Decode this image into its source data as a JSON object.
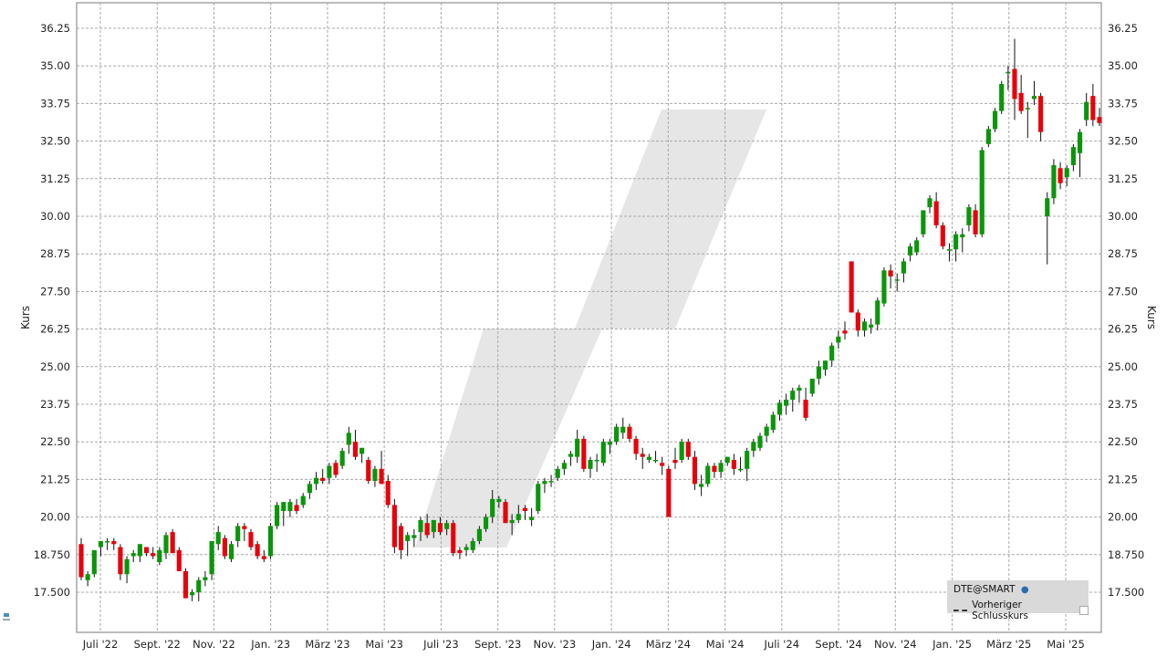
{
  "chart_data": {
    "type": "candlestick",
    "ylabel_left": "Kurs",
    "ylabel_right": "Kurs",
    "ylim": [
      16.5,
      37.0
    ],
    "y_ticks": [
      "17.500",
      "18.750",
      "20.00",
      "21.25",
      "22.50",
      "23.75",
      "25.00",
      "26.25",
      "27.50",
      "28.75",
      "30.00",
      "31.25",
      "32.50",
      "33.75",
      "35.00",
      "36.25"
    ],
    "x_ticks": [
      "Juli '22",
      "Sept. '22",
      "Nov. '22",
      "Jan. '23",
      "März '23",
      "Mai '23",
      "Juli '23",
      "Sept. '23",
      "Nov. '23",
      "Jan. '24",
      "März '24",
      "Mai '24",
      "Juli '24",
      "Sept. '24",
      "Nov. '24",
      "Jan. '25",
      "März '25",
      "Mai '25"
    ],
    "grid": true,
    "up_color": "#0a960a",
    "down_color": "#e8000b",
    "candles": [
      {
        "o": 19.1,
        "h": 19.3,
        "l": 17.9,
        "c": 18.0
      },
      {
        "o": 17.9,
        "h": 18.2,
        "l": 17.7,
        "c": 18.1
      },
      {
        "o": 18.1,
        "h": 18.9,
        "l": 18.0,
        "c": 18.9
      },
      {
        "o": 19.0,
        "h": 19.2,
        "l": 18.7,
        "c": 19.2
      },
      {
        "o": 19.2,
        "h": 19.3,
        "l": 18.9,
        "c": 19.2
      },
      {
        "o": 19.2,
        "h": 19.3,
        "l": 18.9,
        "c": 19.1
      },
      {
        "o": 19.0,
        "h": 19.1,
        "l": 17.9,
        "c": 18.1
      },
      {
        "o": 18.1,
        "h": 18.7,
        "l": 17.8,
        "c": 18.6
      },
      {
        "o": 18.7,
        "h": 18.9,
        "l": 18.5,
        "c": 18.8
      },
      {
        "o": 18.7,
        "h": 19.1,
        "l": 18.5,
        "c": 19.1
      },
      {
        "o": 19.0,
        "h": 19.0,
        "l": 18.7,
        "c": 18.8
      },
      {
        "o": 18.8,
        "h": 19.0,
        "l": 18.6,
        "c": 18.7
      },
      {
        "o": 18.5,
        "h": 19.0,
        "l": 18.4,
        "c": 18.9
      },
      {
        "o": 18.8,
        "h": 19.5,
        "l": 18.6,
        "c": 19.4
      },
      {
        "o": 19.5,
        "h": 19.6,
        "l": 18.8,
        "c": 18.8
      },
      {
        "o": 18.9,
        "h": 19.0,
        "l": 18.2,
        "c": 18.2
      },
      {
        "o": 18.2,
        "h": 18.3,
        "l": 17.3,
        "c": 17.3
      },
      {
        "o": 17.4,
        "h": 17.6,
        "l": 17.2,
        "c": 17.5
      },
      {
        "o": 17.5,
        "h": 18.0,
        "l": 17.2,
        "c": 17.9
      },
      {
        "o": 17.9,
        "h": 18.2,
        "l": 17.7,
        "c": 18.0
      },
      {
        "o": 18.1,
        "h": 19.2,
        "l": 17.9,
        "c": 19.2
      },
      {
        "o": 19.1,
        "h": 19.7,
        "l": 18.9,
        "c": 19.5
      },
      {
        "o": 19.3,
        "h": 19.4,
        "l": 18.6,
        "c": 18.7
      },
      {
        "o": 18.6,
        "h": 19.2,
        "l": 18.5,
        "c": 19.1
      },
      {
        "o": 19.2,
        "h": 19.8,
        "l": 19.0,
        "c": 19.7
      },
      {
        "o": 19.7,
        "h": 19.8,
        "l": 19.2,
        "c": 19.6
      },
      {
        "o": 19.5,
        "h": 19.6,
        "l": 18.9,
        "c": 19.0
      },
      {
        "o": 19.1,
        "h": 19.2,
        "l": 18.6,
        "c": 18.7
      },
      {
        "o": 18.7,
        "h": 18.9,
        "l": 18.5,
        "c": 18.6
      },
      {
        "o": 18.7,
        "h": 19.8,
        "l": 18.6,
        "c": 19.7
      },
      {
        "o": 19.7,
        "h": 20.5,
        "l": 19.6,
        "c": 20.4
      },
      {
        "o": 20.2,
        "h": 20.5,
        "l": 19.7,
        "c": 20.5
      },
      {
        "o": 20.2,
        "h": 20.6,
        "l": 20.0,
        "c": 20.5
      },
      {
        "o": 20.4,
        "h": 20.6,
        "l": 20.1,
        "c": 20.2
      },
      {
        "o": 20.4,
        "h": 20.8,
        "l": 20.3,
        "c": 20.7
      },
      {
        "o": 20.8,
        "h": 21.2,
        "l": 20.6,
        "c": 21.1
      },
      {
        "o": 21.1,
        "h": 21.5,
        "l": 20.9,
        "c": 21.3
      },
      {
        "o": 21.3,
        "h": 21.6,
        "l": 21.1,
        "c": 21.2
      },
      {
        "o": 21.3,
        "h": 21.8,
        "l": 21.1,
        "c": 21.7
      },
      {
        "o": 21.8,
        "h": 21.9,
        "l": 21.3,
        "c": 21.4
      },
      {
        "o": 21.7,
        "h": 22.3,
        "l": 21.6,
        "c": 22.2
      },
      {
        "o": 22.4,
        "h": 23.0,
        "l": 22.1,
        "c": 22.8
      },
      {
        "o": 22.5,
        "h": 22.9,
        "l": 21.9,
        "c": 22.0
      },
      {
        "o": 22.1,
        "h": 22.3,
        "l": 21.8,
        "c": 22.3
      },
      {
        "o": 21.9,
        "h": 22.0,
        "l": 21.1,
        "c": 21.2
      },
      {
        "o": 21.2,
        "h": 21.7,
        "l": 21.0,
        "c": 21.6
      },
      {
        "o": 21.6,
        "h": 22.2,
        "l": 21.1,
        "c": 21.1
      },
      {
        "o": 21.2,
        "h": 21.4,
        "l": 20.3,
        "c": 20.4
      },
      {
        "o": 20.4,
        "h": 20.6,
        "l": 18.8,
        "c": 19.0
      },
      {
        "o": 19.7,
        "h": 19.8,
        "l": 18.6,
        "c": 18.9
      },
      {
        "o": 19.2,
        "h": 19.5,
        "l": 18.7,
        "c": 19.4
      },
      {
        "o": 19.3,
        "h": 19.6,
        "l": 19.0,
        "c": 19.4
      },
      {
        "o": 19.5,
        "h": 20.0,
        "l": 19.2,
        "c": 19.9
      },
      {
        "o": 19.8,
        "h": 20.1,
        "l": 19.3,
        "c": 19.4
      },
      {
        "o": 19.5,
        "h": 19.9,
        "l": 19.3,
        "c": 19.9
      },
      {
        "o": 19.8,
        "h": 20.0,
        "l": 19.4,
        "c": 19.5
      },
      {
        "o": 19.6,
        "h": 19.9,
        "l": 19.4,
        "c": 19.8
      },
      {
        "o": 19.8,
        "h": 19.9,
        "l": 18.7,
        "c": 18.8
      },
      {
        "o": 18.9,
        "h": 19.0,
        "l": 18.6,
        "c": 18.8
      },
      {
        "o": 18.9,
        "h": 19.1,
        "l": 18.7,
        "c": 19.0
      },
      {
        "o": 18.9,
        "h": 19.3,
        "l": 18.8,
        "c": 19.2
      },
      {
        "o": 19.2,
        "h": 19.7,
        "l": 19.1,
        "c": 19.6
      },
      {
        "o": 19.6,
        "h": 20.1,
        "l": 19.5,
        "c": 20.0
      },
      {
        "o": 20.0,
        "h": 20.9,
        "l": 19.8,
        "c": 20.6
      },
      {
        "o": 20.5,
        "h": 20.7,
        "l": 20.3,
        "c": 20.6
      },
      {
        "o": 20.5,
        "h": 20.6,
        "l": 19.8,
        "c": 19.8
      },
      {
        "o": 19.8,
        "h": 20.1,
        "l": 19.4,
        "c": 19.9
      },
      {
        "o": 19.9,
        "h": 20.4,
        "l": 19.8,
        "c": 20.1
      },
      {
        "o": 20.3,
        "h": 20.4,
        "l": 19.9,
        "c": 20.2
      },
      {
        "o": 19.9,
        "h": 20.3,
        "l": 19.7,
        "c": 20.0
      },
      {
        "o": 20.2,
        "h": 21.2,
        "l": 20.1,
        "c": 21.1
      },
      {
        "o": 21.1,
        "h": 21.3,
        "l": 20.8,
        "c": 21.2
      },
      {
        "o": 21.2,
        "h": 21.4,
        "l": 21.0,
        "c": 21.2
      },
      {
        "o": 21.3,
        "h": 21.7,
        "l": 21.2,
        "c": 21.6
      },
      {
        "o": 21.6,
        "h": 21.9,
        "l": 21.4,
        "c": 21.8
      },
      {
        "o": 22.0,
        "h": 22.2,
        "l": 21.7,
        "c": 22.1
      },
      {
        "o": 22.0,
        "h": 22.9,
        "l": 21.8,
        "c": 22.6
      },
      {
        "o": 22.6,
        "h": 22.7,
        "l": 21.5,
        "c": 21.6
      },
      {
        "o": 21.6,
        "h": 22.0,
        "l": 21.3,
        "c": 21.9
      },
      {
        "o": 21.9,
        "h": 22.1,
        "l": 21.5,
        "c": 21.9
      },
      {
        "o": 21.8,
        "h": 22.6,
        "l": 21.7,
        "c": 22.5
      },
      {
        "o": 22.4,
        "h": 22.6,
        "l": 22.1,
        "c": 22.5
      },
      {
        "o": 22.5,
        "h": 23.1,
        "l": 22.4,
        "c": 23.0
      },
      {
        "o": 22.8,
        "h": 23.3,
        "l": 22.6,
        "c": 23.0
      },
      {
        "o": 23.0,
        "h": 23.1,
        "l": 22.5,
        "c": 22.6
      },
      {
        "o": 22.6,
        "h": 22.7,
        "l": 21.9,
        "c": 22.1
      },
      {
        "o": 22.1,
        "h": 22.3,
        "l": 21.6,
        "c": 22.0
      },
      {
        "o": 21.9,
        "h": 22.1,
        "l": 21.8,
        "c": 22.0
      },
      {
        "o": 21.9,
        "h": 22.2,
        "l": 21.8,
        "c": 21.9
      },
      {
        "o": 21.8,
        "h": 22.0,
        "l": 21.4,
        "c": 21.7
      },
      {
        "o": 21.6,
        "h": 21.7,
        "l": 20.0,
        "c": 20.0
      },
      {
        "o": 21.9,
        "h": 22.3,
        "l": 21.6,
        "c": 21.8
      },
      {
        "o": 21.9,
        "h": 22.6,
        "l": 21.8,
        "c": 22.5
      },
      {
        "o": 22.5,
        "h": 22.6,
        "l": 21.9,
        "c": 22.0
      },
      {
        "o": 22.0,
        "h": 22.2,
        "l": 20.9,
        "c": 21.1
      },
      {
        "o": 21.0,
        "h": 21.4,
        "l": 20.7,
        "c": 21.1
      },
      {
        "o": 21.1,
        "h": 21.8,
        "l": 21.0,
        "c": 21.7
      },
      {
        "o": 21.7,
        "h": 21.8,
        "l": 21.3,
        "c": 21.5
      },
      {
        "o": 21.5,
        "h": 21.9,
        "l": 21.3,
        "c": 21.8
      },
      {
        "o": 21.8,
        "h": 22.0,
        "l": 21.7,
        "c": 22.0
      },
      {
        "o": 21.9,
        "h": 22.1,
        "l": 21.4,
        "c": 21.6
      },
      {
        "o": 21.6,
        "h": 22.0,
        "l": 21.5,
        "c": 21.6
      },
      {
        "o": 21.6,
        "h": 22.3,
        "l": 21.2,
        "c": 22.2
      },
      {
        "o": 22.2,
        "h": 22.6,
        "l": 22.0,
        "c": 22.5
      },
      {
        "o": 22.3,
        "h": 22.8,
        "l": 22.2,
        "c": 22.7
      },
      {
        "o": 22.7,
        "h": 23.1,
        "l": 22.5,
        "c": 23.0
      },
      {
        "o": 22.9,
        "h": 23.5,
        "l": 22.8,
        "c": 23.4
      },
      {
        "o": 23.4,
        "h": 23.9,
        "l": 23.2,
        "c": 23.8
      },
      {
        "o": 23.7,
        "h": 24.1,
        "l": 23.4,
        "c": 23.9
      },
      {
        "o": 23.9,
        "h": 24.3,
        "l": 23.5,
        "c": 24.2
      },
      {
        "o": 24.2,
        "h": 24.4,
        "l": 23.8,
        "c": 24.3
      },
      {
        "o": 23.9,
        "h": 24.3,
        "l": 23.2,
        "c": 23.3
      },
      {
        "o": 24.1,
        "h": 24.6,
        "l": 24.0,
        "c": 24.6
      },
      {
        "o": 24.6,
        "h": 25.2,
        "l": 24.4,
        "c": 25.0
      },
      {
        "o": 24.9,
        "h": 25.2,
        "l": 24.7,
        "c": 25.2
      },
      {
        "o": 25.2,
        "h": 25.8,
        "l": 25.0,
        "c": 25.7
      },
      {
        "o": 25.8,
        "h": 26.2,
        "l": 25.6,
        "c": 26.0
      },
      {
        "o": 26.2,
        "h": 26.5,
        "l": 25.9,
        "c": 26.1
      },
      {
        "o": 28.5,
        "h": 28.5,
        "l": 26.8,
        "c": 26.8
      },
      {
        "o": 26.8,
        "h": 26.9,
        "l": 26.0,
        "c": 26.2
      },
      {
        "o": 26.2,
        "h": 26.6,
        "l": 26.0,
        "c": 26.5
      },
      {
        "o": 26.3,
        "h": 26.6,
        "l": 26.1,
        "c": 26.4
      },
      {
        "o": 26.4,
        "h": 27.3,
        "l": 26.2,
        "c": 27.2
      },
      {
        "o": 27.1,
        "h": 28.3,
        "l": 27.0,
        "c": 28.2
      },
      {
        "o": 28.2,
        "h": 28.4,
        "l": 27.6,
        "c": 28.0
      },
      {
        "o": 27.9,
        "h": 28.1,
        "l": 27.5,
        "c": 27.9
      },
      {
        "o": 28.1,
        "h": 28.6,
        "l": 27.8,
        "c": 28.5
      },
      {
        "o": 28.7,
        "h": 29.1,
        "l": 28.5,
        "c": 29.0
      },
      {
        "o": 28.8,
        "h": 29.3,
        "l": 28.7,
        "c": 29.2
      },
      {
        "o": 29.4,
        "h": 30.1,
        "l": 29.3,
        "c": 30.2
      },
      {
        "o": 30.3,
        "h": 30.7,
        "l": 30.1,
        "c": 30.6
      },
      {
        "o": 30.5,
        "h": 30.8,
        "l": 29.6,
        "c": 29.7
      },
      {
        "o": 29.7,
        "h": 29.8,
        "l": 28.9,
        "c": 29.0
      },
      {
        "o": 28.9,
        "h": 29.1,
        "l": 28.5,
        "c": 28.9
      },
      {
        "o": 28.9,
        "h": 29.5,
        "l": 28.5,
        "c": 29.4
      },
      {
        "o": 29.3,
        "h": 29.6,
        "l": 28.8,
        "c": 29.4
      },
      {
        "o": 29.7,
        "h": 30.4,
        "l": 29.5,
        "c": 30.3
      },
      {
        "o": 30.2,
        "h": 30.4,
        "l": 29.3,
        "c": 29.4
      },
      {
        "o": 29.4,
        "h": 32.3,
        "l": 29.3,
        "c": 32.2
      },
      {
        "o": 32.4,
        "h": 33.0,
        "l": 32.3,
        "c": 32.9
      },
      {
        "o": 32.9,
        "h": 33.6,
        "l": 32.8,
        "c": 33.5
      },
      {
        "o": 33.5,
        "h": 34.5,
        "l": 33.4,
        "c": 34.4
      },
      {
        "o": 34.8,
        "h": 35.0,
        "l": 34.2,
        "c": 34.8
      },
      {
        "o": 34.9,
        "h": 35.9,
        "l": 33.2,
        "c": 33.9
      },
      {
        "o": 34.1,
        "h": 34.7,
        "l": 33.4,
        "c": 33.5
      },
      {
        "o": 33.6,
        "h": 33.8,
        "l": 32.6,
        "c": 33.6
      },
      {
        "o": 33.9,
        "h": 34.5,
        "l": 33.7,
        "c": 34.0
      },
      {
        "o": 34.0,
        "h": 34.1,
        "l": 32.5,
        "c": 32.8
      },
      {
        "o": 30.0,
        "h": 30.8,
        "l": 28.4,
        "c": 30.6
      },
      {
        "o": 30.6,
        "h": 31.9,
        "l": 30.4,
        "c": 31.7
      },
      {
        "o": 31.6,
        "h": 31.8,
        "l": 30.9,
        "c": 31.1
      },
      {
        "o": 31.3,
        "h": 31.7,
        "l": 31.0,
        "c": 31.6
      },
      {
        "o": 31.7,
        "h": 32.4,
        "l": 31.5,
        "c": 32.3
      },
      {
        "o": 32.1,
        "h": 32.9,
        "l": 31.3,
        "c": 32.8
      },
      {
        "o": 33.2,
        "h": 34.1,
        "l": 33.0,
        "c": 33.8
      },
      {
        "o": 34.0,
        "h": 34.4,
        "l": 33.0,
        "c": 33.2
      },
      {
        "o": 33.3,
        "h": 33.6,
        "l": 33.0,
        "c": 33.1
      }
    ]
  },
  "legend": {
    "symbol_label": "DTE@SMART",
    "previous_close_label": "Vorheriger Schlusskurs"
  }
}
